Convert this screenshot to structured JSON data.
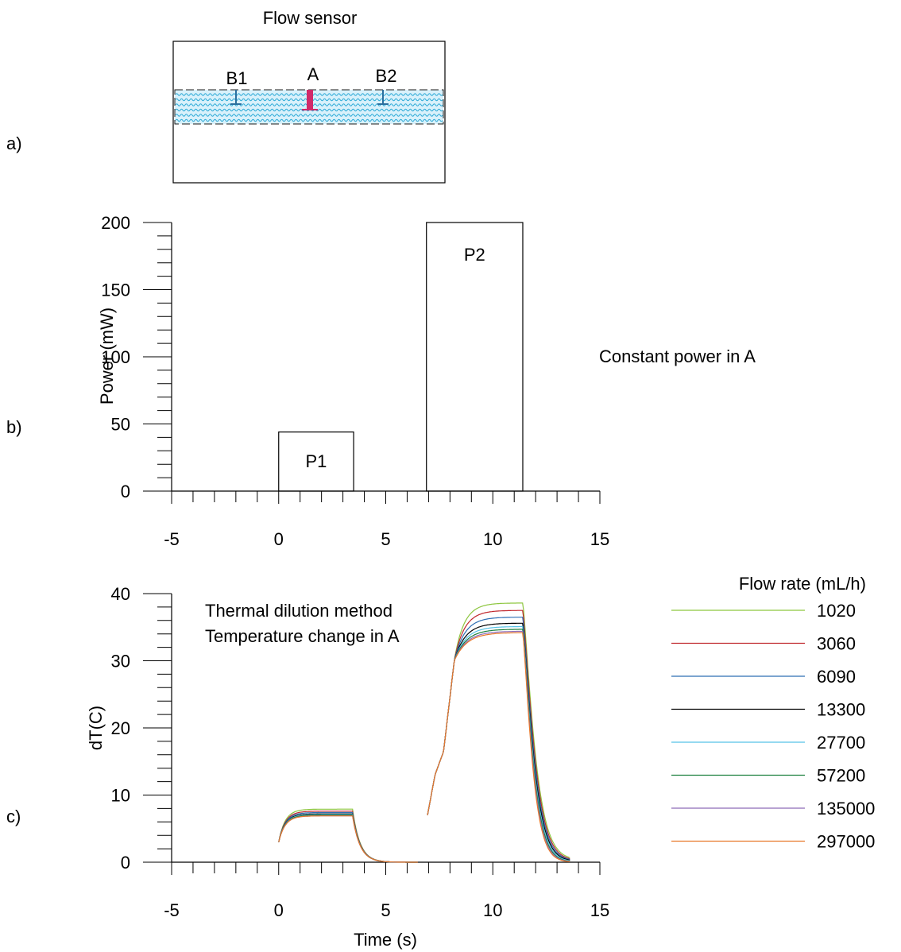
{
  "panel_labels": [
    "a)",
    "b)",
    "c)"
  ],
  "sensor": {
    "title": "Flow sensor",
    "labels": {
      "b1": "B1",
      "a": "A",
      "b2": "B2"
    },
    "colors": {
      "water": "#29a9d6",
      "heater": "#d12a6a",
      "probe": "#2b6f9e"
    }
  },
  "chart_data": [
    {
      "type": "bar",
      "title": "",
      "xlabel": "",
      "ylabel": "Power (mW)",
      "annotation": "Constant power in A",
      "xlim": [
        -5,
        15
      ],
      "ylim": [
        0,
        200
      ],
      "xticks": [
        -5,
        0,
        5,
        10,
        15
      ],
      "yticks": [
        0,
        50,
        100,
        150,
        200
      ],
      "pulses": [
        {
          "label": "P1",
          "start": 0,
          "end": 3.5,
          "value": 44
        },
        {
          "label": "P2",
          "start": 6.9,
          "end": 11.4,
          "value": 200
        }
      ]
    },
    {
      "type": "line",
      "title": "",
      "xlabel": "Time (s)",
      "ylabel": "dT(C)",
      "annotation": [
        "Thermal dilution method",
        "Temperature change in A"
      ],
      "legend_title": "Flow rate (mL/h)",
      "legend_position": "right",
      "xlim": [
        -5,
        15
      ],
      "ylim": [
        0,
        40
      ],
      "xticks": [
        -5,
        0,
        5,
        10,
        15
      ],
      "yticks": [
        0,
        10,
        20,
        30,
        40
      ],
      "series": [
        {
          "name": "1020",
          "color": "#8dc63f",
          "plateau1": 7.9,
          "plateau2": 38.6,
          "tail": 0.3
        },
        {
          "name": "3060",
          "color": "#c0272d",
          "plateau1": 7.6,
          "plateau2": 37.5,
          "tail": 0.2
        },
        {
          "name": "6090",
          "color": "#2e6fb5",
          "plateau1": 7.4,
          "plateau2": 36.5,
          "tail": 0.15
        },
        {
          "name": "13300",
          "color": "#000000",
          "plateau1": 7.2,
          "plateau2": 35.6,
          "tail": 0.1
        },
        {
          "name": "27700",
          "color": "#56c2e6",
          "plateau1": 7.1,
          "plateau2": 35.1,
          "tail": 0.05
        },
        {
          "name": "57200",
          "color": "#1a7f3c",
          "plateau1": 7.0,
          "plateau2": 34.7,
          "tail": 0.0
        },
        {
          "name": "135000",
          "color": "#8e6bb8",
          "plateau1": 6.9,
          "plateau2": 34.4,
          "tail": 0.0
        },
        {
          "name": "297000",
          "color": "#e8782a",
          "plateau1": 6.9,
          "plateau2": 34.2,
          "tail": 0.0
        }
      ]
    }
  ]
}
